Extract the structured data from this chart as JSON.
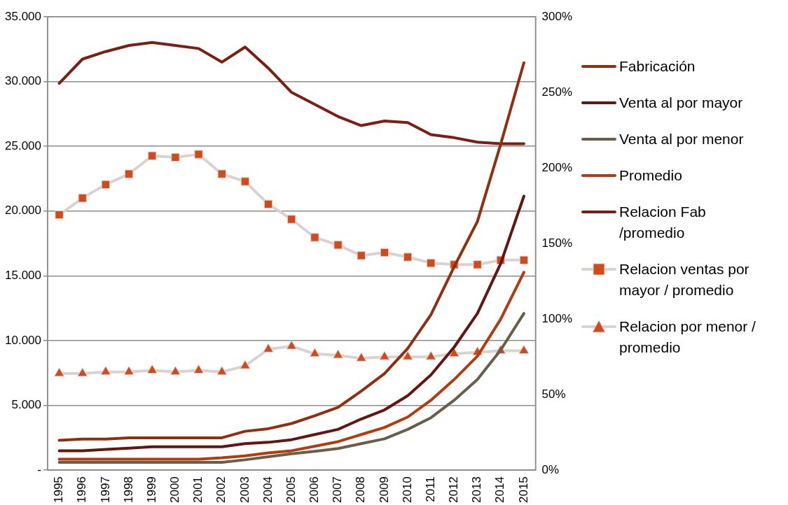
{
  "chart_data": {
    "type": "line",
    "categories": [
      "1995",
      "1996",
      "1997",
      "1998",
      "1999",
      "2000",
      "2001",
      "2002",
      "2003",
      "2004",
      "2005",
      "2006",
      "2007",
      "2008",
      "2009",
      "2010",
      "2011",
      "2012",
      "2013",
      "2014",
      "2015"
    ],
    "series": [
      {
        "name": "Fabricación",
        "color": "#8e2f0f",
        "values": [
          2300,
          2400,
          2400,
          2500,
          2500,
          2500,
          2500,
          2500,
          3000,
          3200,
          3600,
          4200,
          4850,
          6100,
          7450,
          9400,
          12000,
          15700,
          19200,
          25150,
          31450
        ]
      },
      {
        "name": "Venta al por mayor",
        "color": "#63160f",
        "values": [
          1500,
          1500,
          1600,
          1700,
          1800,
          1800,
          1800,
          1800,
          2050,
          2150,
          2350,
          2750,
          3150,
          3950,
          4650,
          5750,
          7350,
          9500,
          12100,
          15950,
          21150
        ]
      },
      {
        "name": "Venta al por menor",
        "color": "#6b5e47",
        "values": [
          600,
          600,
          600,
          600,
          600,
          600,
          600,
          600,
          800,
          1030,
          1260,
          1450,
          1670,
          2050,
          2420,
          3150,
          4050,
          5400,
          7000,
          9270,
          12100
        ]
      },
      {
        "name": "Promedio",
        "color": "#b43a0f",
        "values": [
          850,
          850,
          850,
          850,
          850,
          850,
          850,
          950,
          1100,
          1330,
          1500,
          1850,
          2200,
          2750,
          3300,
          4100,
          5400,
          7000,
          8800,
          11650,
          15270
        ]
      },
      {
        "name": "Relacion Fab /promedio",
        "color": "#7a1f12",
        "axis": "y2",
        "values": [
          256,
          272,
          277,
          281,
          283,
          281,
          279,
          270,
          280,
          266,
          250,
          242,
          234,
          228,
          231,
          230,
          222,
          220,
          217,
          216,
          216
        ]
      },
      {
        "name": "Relacion ventas por mayor / promedio",
        "color": "#d8d3d1",
        "colors": [
          "#d24a1a",
          "#d24a1a",
          "#d24a1a",
          "#d24a1a",
          "#d24a1a",
          "#d24a1a",
          "#d24a1a",
          "#d24a1a",
          "#d24a1a",
          "#d24a1a",
          "#d24a1a",
          "#d24a1a",
          "#d24a1a",
          "#d24a1a",
          "#d24a1a",
          "#d24a1a",
          "#d24a1a",
          "#d24a1a",
          "#d24a1a",
          "#d24a1a",
          "#d24a1a"
        ],
        "marker": "square",
        "axis": "y2",
        "values": [
          169,
          180,
          189,
          196,
          208,
          207,
          209,
          196,
          191,
          176,
          166,
          154,
          149,
          142,
          144,
          141,
          137,
          136,
          136,
          139,
          139
        ]
      },
      {
        "name": "Relacion por menor / promedio",
        "color": "#d8d3d1",
        "colors": [
          "#d24a1a",
          "#d24a1a",
          "#d24a1a",
          "#d24a1a",
          "#d24a1a",
          "#d24a1a",
          "#d24a1a",
          "#d24a1a",
          "#d24a1a",
          "#d24a1a",
          "#d24a1a",
          "#d24a1a",
          "#d24a1a",
          "#d24a1a",
          "#d24a1a",
          "#d24a1a",
          "#d24a1a",
          "#d24a1a",
          "#d24a1a",
          "#d24a1a",
          "#d24a1a"
        ],
        "marker": "triangle",
        "axis": "y2",
        "values": [
          64,
          64,
          65,
          65,
          66,
          65,
          66,
          65,
          69,
          80,
          82,
          77,
          76,
          74,
          75,
          75,
          75,
          77,
          78,
          79,
          79
        ]
      }
    ],
    "ylim": [
      0,
      35000
    ],
    "yticks": [
      {
        "value": 0,
        "label": "-"
      },
      {
        "value": 5000,
        "label": "5.000"
      },
      {
        "value": 10000,
        "label": "10.000"
      },
      {
        "value": 15000,
        "label": "15.000"
      },
      {
        "value": 20000,
        "label": "20.000"
      },
      {
        "value": 25000,
        "label": "25.000"
      },
      {
        "value": 30000,
        "label": "30.000"
      },
      {
        "value": 35000,
        "label": "35.000"
      }
    ],
    "y2lim": [
      0,
      300
    ],
    "y2ticks": [
      {
        "value": 0,
        "label": "0%"
      },
      {
        "value": 50,
        "label": "50%"
      },
      {
        "value": 100,
        "label": "100%"
      },
      {
        "value": 150,
        "label": "150%"
      },
      {
        "value": 200,
        "label": "200%"
      },
      {
        "value": 250,
        "label": "250%"
      },
      {
        "value": 300,
        "label": "300%"
      }
    ],
    "grid": "y",
    "legend": "right"
  }
}
